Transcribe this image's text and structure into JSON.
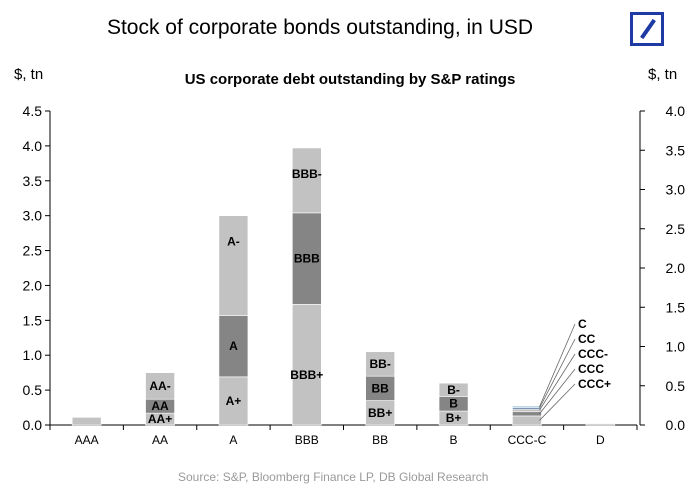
{
  "page": {
    "title": "Stock of corporate bonds outstanding, in USD"
  },
  "colors": {
    "light": "#c2c2c2",
    "dark": "#858585",
    "axis": "#000000",
    "logo": "#1f3aa5",
    "source": "#9a9a9a"
  },
  "chart_data": {
    "type": "bar",
    "stacked": true,
    "title": "US corporate debt outstanding by S&P ratings",
    "ylabel_left": "$, tn",
    "ylabel_right": "$, tn",
    "ylim_left": [
      0,
      4.5
    ],
    "ylim_right": [
      0,
      4.0
    ],
    "yticks_left": [
      "0.0",
      "0.5",
      "1.0",
      "1.5",
      "2.0",
      "2.5",
      "3.0",
      "3.5",
      "4.0",
      "4.5"
    ],
    "yticks_right": [
      "0.0",
      "0.5",
      "1.0",
      "1.5",
      "2.0",
      "2.5",
      "3.0",
      "3.5",
      "4.0"
    ],
    "categories": [
      "AAA",
      "AA",
      "A",
      "BBB",
      "BB",
      "B",
      "CCC-C",
      "D"
    ],
    "stacks": [
      [
        {
          "label": "",
          "value": 0.11,
          "shade": "light"
        }
      ],
      [
        {
          "label": "AA+",
          "value": 0.17,
          "shade": "light"
        },
        {
          "label": "AA",
          "value": 0.2,
          "shade": "dark"
        },
        {
          "label": "AA-",
          "value": 0.38,
          "shade": "light"
        }
      ],
      [
        {
          "label": "A+",
          "value": 0.69,
          "shade": "light"
        },
        {
          "label": "A",
          "value": 0.88,
          "shade": "dark"
        },
        {
          "label": "A-",
          "value": 1.43,
          "shade": "light"
        }
      ],
      [
        {
          "label": "BBB+",
          "value": 1.73,
          "shade": "light"
        },
        {
          "label": "BBB",
          "value": 1.31,
          "shade": "dark"
        },
        {
          "label": "BBB-",
          "value": 0.93,
          "shade": "light"
        }
      ],
      [
        {
          "label": "BB+",
          "value": 0.35,
          "shade": "light"
        },
        {
          "label": "BB",
          "value": 0.35,
          "shade": "dark"
        },
        {
          "label": "BB-",
          "value": 0.35,
          "shade": "light"
        }
      ],
      [
        {
          "label": "B+",
          "value": 0.2,
          "shade": "light"
        },
        {
          "label": "B",
          "value": 0.21,
          "shade": "dark"
        },
        {
          "label": "B-",
          "value": 0.19,
          "shade": "light"
        }
      ],
      [
        {
          "label": "CCC+",
          "value": 0.13,
          "shade": "light"
        },
        {
          "label": "CCC",
          "value": 0.06,
          "shade": "dark"
        },
        {
          "label": "CCC-",
          "value": 0.04,
          "shade": "light"
        },
        {
          "label": "CC",
          "value": 0.02,
          "shade": "#2d5a8e"
        },
        {
          "label": "C",
          "value": 0.02,
          "shade": "#7fb5d5"
        }
      ],
      [
        {
          "label": "",
          "value": 0.02,
          "shade": "light"
        }
      ]
    ],
    "callout_labels": [
      "C",
      "CC",
      "CCC-",
      "CCC",
      "CCC+"
    ]
  },
  "source": "Source: S&P, Bloomberg Finance LP, DB Global Research"
}
